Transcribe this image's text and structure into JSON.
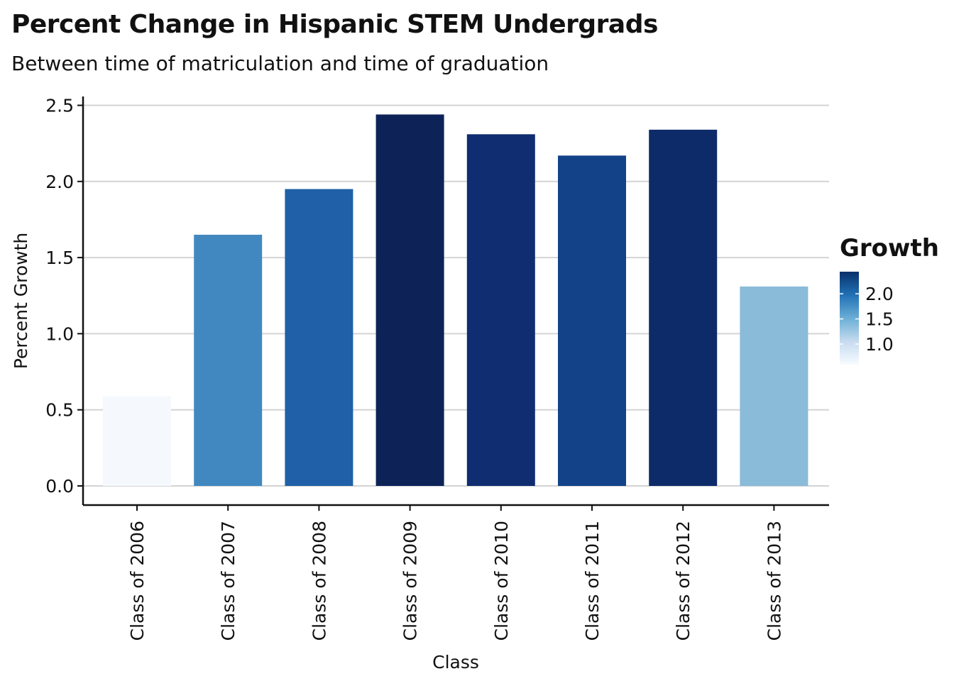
{
  "title": "Percent Change in Hispanic STEM Undergrads",
  "subtitle": "Between time of matriculation and time of graduation",
  "chart_data": {
    "type": "bar",
    "categories": [
      "Class of 2006",
      "Class of 2007",
      "Class of 2008",
      "Class of 2009",
      "Class of 2010",
      "Class of 2011",
      "Class of 2012",
      "Class of 2013"
    ],
    "values": [
      0.59,
      1.65,
      1.95,
      2.44,
      2.31,
      2.17,
      2.34,
      1.31
    ],
    "xlabel": "Class",
    "ylabel": "Percent Growth",
    "ylim": [
      0,
      2.56
    ],
    "yticks": [
      "0.0",
      "0.5",
      "1.0",
      "1.5",
      "2.0",
      "2.5"
    ],
    "grid": "horizontal",
    "legend": {
      "title": "Growth",
      "placement": "right",
      "ticks": [
        "1.0",
        "1.5",
        "2.0"
      ],
      "range": [
        0.59,
        2.44
      ],
      "colors": [
        "#f7fbff",
        "#c6dbef",
        "#6baed6",
        "#2171b5",
        "#08306b"
      ]
    },
    "bar_colors": [
      "#f5f9fe",
      "#4188c0",
      "#2060a8",
      "#0d2358",
      "#0f2d70",
      "#134289",
      "#0e2b69",
      "#8abbd9"
    ]
  }
}
